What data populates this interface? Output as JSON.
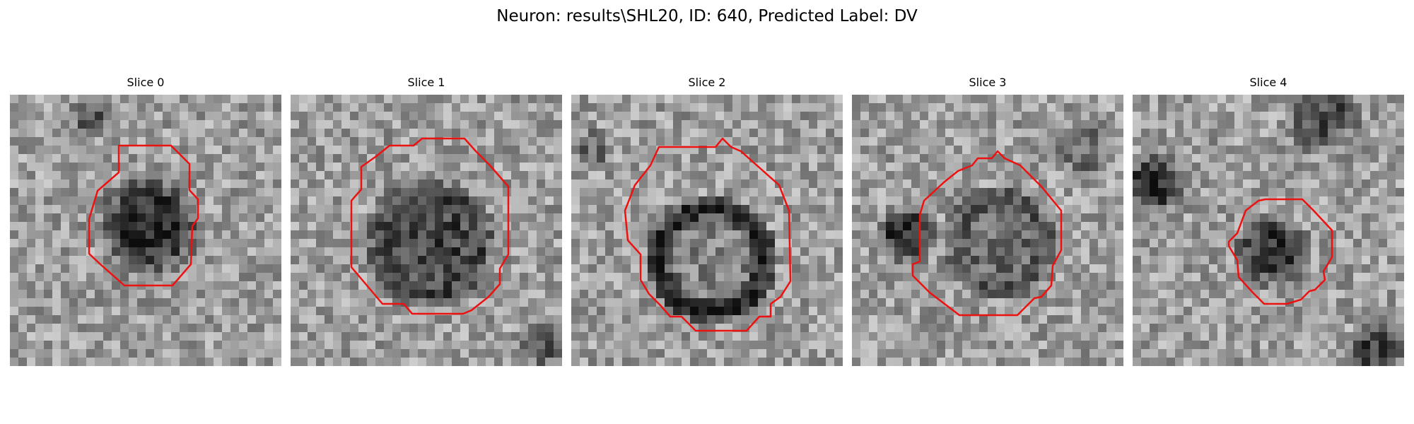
{
  "figure": {
    "title": "Neuron: results\\SHL20, ID: 640, Predicted Label: DV"
  },
  "colors": {
    "contour": "#ee1111",
    "background": "#ffffff"
  },
  "panels": [
    {
      "title": "Slice 0"
    },
    {
      "title": "Slice 1"
    },
    {
      "title": "Slice 2"
    },
    {
      "title": "Slice 3"
    },
    {
      "title": "Slice 4"
    }
  ]
}
